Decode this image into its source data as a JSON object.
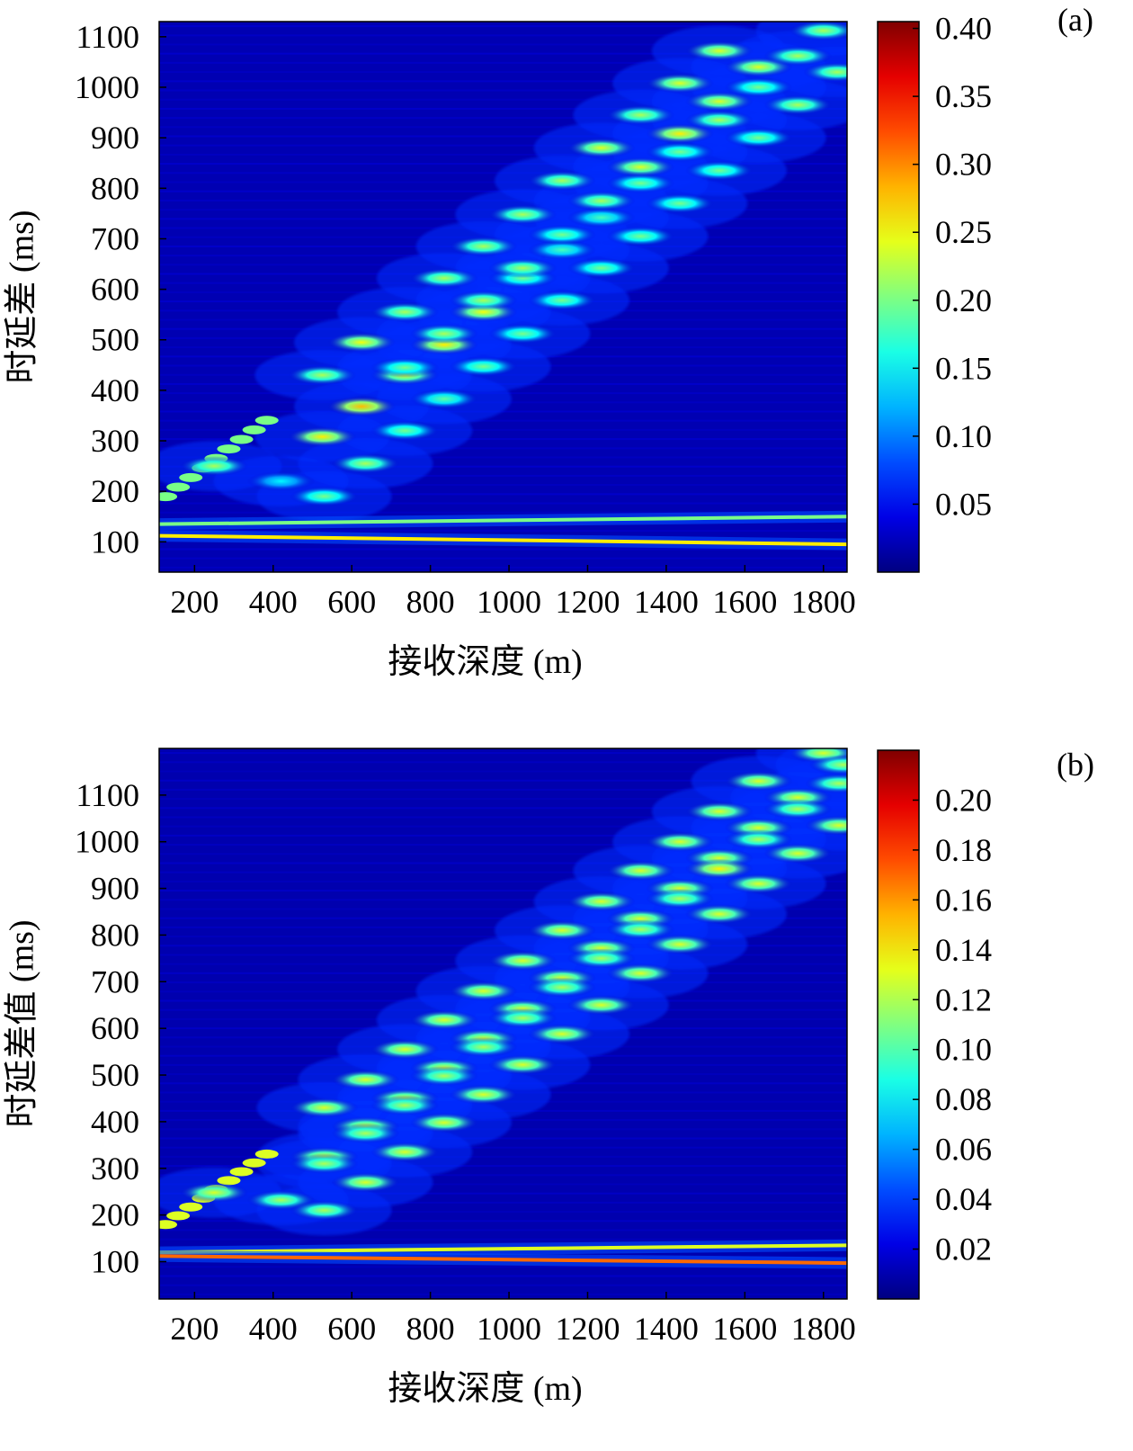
{
  "chart_data": [
    {
      "panel_label": "(a)",
      "type": "heatmap",
      "xlabel": "接收深度 (m)",
      "ylabel": "时延差 (ms)",
      "xlim": [
        110,
        1860
      ],
      "ylim": [
        40,
        1130
      ],
      "xticks": [
        200,
        400,
        600,
        800,
        1000,
        1200,
        1400,
        1600,
        1800
      ],
      "xtick_labels": [
        "200",
        "400",
        "600",
        "800",
        "1000",
        "1200",
        "1400",
        "1600",
        "1800"
      ],
      "yticks": [
        100,
        200,
        300,
        400,
        500,
        600,
        700,
        800,
        900,
        1000,
        1100
      ],
      "ytick_labels": [
        "100",
        "200",
        "300",
        "400",
        "500",
        "600",
        "700",
        "800",
        "900",
        "1000",
        "1100"
      ],
      "colorbar": {
        "min": 0,
        "max": 0.405,
        "ticks": [
          0.05,
          0.1,
          0.15,
          0.2,
          0.25,
          0.3,
          0.35,
          0.4
        ],
        "tick_labels": [
          "0.05",
          "0.10",
          "0.15",
          "0.20",
          "0.25",
          "0.30",
          "0.35",
          "0.40"
        ],
        "colormap": "jet"
      },
      "background_value": 0.02,
      "horizontal_bands": [
        {
          "depths": [
            110,
            1860
          ],
          "delays": [
            135,
            150
          ],
          "value": 0.2
        },
        {
          "depths": [
            110,
            1860
          ],
          "delays": [
            112,
            95
          ],
          "value": 0.26
        }
      ],
      "direct_path": {
        "depths": [
          110,
          400
        ],
        "delays": [
          180,
          350
        ],
        "value": 0.2
      },
      "blobs": [
        {
          "depth": 250,
          "delay": 250,
          "value": 0.22
        },
        {
          "depth": 420,
          "delay": 220,
          "value": 0.15
        },
        {
          "depth": 530,
          "delay": 190,
          "value": 0.2
        },
        {
          "depth": 525,
          "delay": 308,
          "value": 0.26
        },
        {
          "depth": 635,
          "delay": 255,
          "value": 0.22
        },
        {
          "depth": 735,
          "delay": 320,
          "value": 0.2
        },
        {
          "depth": 625,
          "delay": 368,
          "value": 0.28
        },
        {
          "depth": 835,
          "delay": 383,
          "value": 0.19
        },
        {
          "depth": 525,
          "delay": 430,
          "value": 0.22
        },
        {
          "depth": 735,
          "delay": 430,
          "value": 0.24
        },
        {
          "depth": 735,
          "delay": 445,
          "value": 0.2
        },
        {
          "depth": 935,
          "delay": 447,
          "value": 0.2
        },
        {
          "depth": 625,
          "delay": 495,
          "value": 0.25
        },
        {
          "depth": 835,
          "delay": 490,
          "value": 0.26
        },
        {
          "depth": 835,
          "delay": 512,
          "value": 0.22
        },
        {
          "depth": 1035,
          "delay": 512,
          "value": 0.2
        },
        {
          "depth": 735,
          "delay": 555,
          "value": 0.22
        },
        {
          "depth": 935,
          "delay": 555,
          "value": 0.25
        },
        {
          "depth": 935,
          "delay": 578,
          "value": 0.22
        },
        {
          "depth": 1135,
          "delay": 578,
          "value": 0.2
        },
        {
          "depth": 835,
          "delay": 622,
          "value": 0.22
        },
        {
          "depth": 1035,
          "delay": 622,
          "value": 0.2
        },
        {
          "depth": 1035,
          "delay": 642,
          "value": 0.22
        },
        {
          "depth": 1235,
          "delay": 642,
          "value": 0.2
        },
        {
          "depth": 935,
          "delay": 685,
          "value": 0.22
        },
        {
          "depth": 1135,
          "delay": 678,
          "value": 0.18
        },
        {
          "depth": 1135,
          "delay": 708,
          "value": 0.2
        },
        {
          "depth": 1335,
          "delay": 705,
          "value": 0.2
        },
        {
          "depth": 1035,
          "delay": 748,
          "value": 0.22
        },
        {
          "depth": 1235,
          "delay": 742,
          "value": 0.18
        },
        {
          "depth": 1235,
          "delay": 775,
          "value": 0.22
        },
        {
          "depth": 1435,
          "delay": 770,
          "value": 0.2
        },
        {
          "depth": 1135,
          "delay": 815,
          "value": 0.22
        },
        {
          "depth": 1335,
          "delay": 810,
          "value": 0.2
        },
        {
          "depth": 1335,
          "delay": 842,
          "value": 0.24
        },
        {
          "depth": 1535,
          "delay": 835,
          "value": 0.2
        },
        {
          "depth": 1235,
          "delay": 880,
          "value": 0.24
        },
        {
          "depth": 1435,
          "delay": 872,
          "value": 0.2
        },
        {
          "depth": 1435,
          "delay": 908,
          "value": 0.26
        },
        {
          "depth": 1635,
          "delay": 900,
          "value": 0.2
        },
        {
          "depth": 1335,
          "delay": 945,
          "value": 0.22
        },
        {
          "depth": 1535,
          "delay": 935,
          "value": 0.22
        },
        {
          "depth": 1535,
          "delay": 972,
          "value": 0.24
        },
        {
          "depth": 1735,
          "delay": 965,
          "value": 0.22
        },
        {
          "depth": 1435,
          "delay": 1008,
          "value": 0.24
        },
        {
          "depth": 1635,
          "delay": 1000,
          "value": 0.2
        },
        {
          "depth": 1635,
          "delay": 1040,
          "value": 0.24
        },
        {
          "depth": 1835,
          "delay": 1030,
          "value": 0.22
        },
        {
          "depth": 1535,
          "delay": 1072,
          "value": 0.24
        },
        {
          "depth": 1735,
          "delay": 1062,
          "value": 0.22
        },
        {
          "depth": 1800,
          "delay": 1112,
          "value": 0.22
        }
      ]
    },
    {
      "panel_label": "(b)",
      "type": "heatmap",
      "xlabel": "接收深度 (m)",
      "ylabel": "时延差值 (ms)",
      "xlim": [
        110,
        1860
      ],
      "ylim": [
        20,
        1200
      ],
      "xticks": [
        200,
        400,
        600,
        800,
        1000,
        1200,
        1400,
        1600,
        1800
      ],
      "xtick_labels": [
        "200",
        "400",
        "600",
        "800",
        "1000",
        "1200",
        "1400",
        "1600",
        "1800"
      ],
      "yticks": [
        100,
        200,
        300,
        400,
        500,
        600,
        700,
        800,
        900,
        1000,
        1100
      ],
      "ytick_labels": [
        "100",
        "200",
        "300",
        "400",
        "500",
        "600",
        "700",
        "800",
        "900",
        "1000",
        "1100"
      ],
      "colorbar": {
        "min": 0,
        "max": 0.22,
        "ticks": [
          0.02,
          0.04,
          0.06,
          0.08,
          0.1,
          0.12,
          0.14,
          0.16,
          0.18,
          0.2
        ],
        "tick_labels": [
          "0.02",
          "0.04",
          "0.06",
          "0.08",
          "0.10",
          "0.12",
          "0.14",
          "0.16",
          "0.18",
          "0.20"
        ],
        "colormap": "jet"
      },
      "background_value": 0.01,
      "horizontal_bands": [
        {
          "depths": [
            110,
            1860
          ],
          "delays": [
            120,
            135
          ],
          "value": 0.13
        },
        {
          "depths": [
            110,
            1860
          ],
          "delays": [
            112,
            97
          ],
          "value": 0.17
        }
      ],
      "direct_path": {
        "depths": [
          110,
          400
        ],
        "delays": [
          170,
          340
        ],
        "value": 0.13
      },
      "blobs": [
        {
          "depth": 250,
          "delay": 248,
          "value": 0.13
        },
        {
          "depth": 420,
          "delay": 232,
          "value": 0.12
        },
        {
          "depth": 530,
          "delay": 210,
          "value": 0.12
        },
        {
          "depth": 530,
          "delay": 325,
          "value": 0.13
        },
        {
          "depth": 530,
          "delay": 310,
          "value": 0.12
        },
        {
          "depth": 635,
          "delay": 270,
          "value": 0.13
        },
        {
          "depth": 635,
          "delay": 390,
          "value": 0.13
        },
        {
          "depth": 635,
          "delay": 375,
          "value": 0.12
        },
        {
          "depth": 735,
          "delay": 335,
          "value": 0.13
        },
        {
          "depth": 530,
          "delay": 430,
          "value": 0.13
        },
        {
          "depth": 735,
          "delay": 450,
          "value": 0.13
        },
        {
          "depth": 735,
          "delay": 435,
          "value": 0.12
        },
        {
          "depth": 835,
          "delay": 398,
          "value": 0.13
        },
        {
          "depth": 635,
          "delay": 490,
          "value": 0.13
        },
        {
          "depth": 835,
          "delay": 515,
          "value": 0.13
        },
        {
          "depth": 835,
          "delay": 498,
          "value": 0.12
        },
        {
          "depth": 935,
          "delay": 458,
          "value": 0.13
        },
        {
          "depth": 735,
          "delay": 555,
          "value": 0.13
        },
        {
          "depth": 935,
          "delay": 578,
          "value": 0.13
        },
        {
          "depth": 935,
          "delay": 560,
          "value": 0.12
        },
        {
          "depth": 1035,
          "delay": 522,
          "value": 0.13
        },
        {
          "depth": 835,
          "delay": 618,
          "value": 0.13
        },
        {
          "depth": 1035,
          "delay": 642,
          "value": 0.13
        },
        {
          "depth": 1035,
          "delay": 622,
          "value": 0.12
        },
        {
          "depth": 1135,
          "delay": 588,
          "value": 0.13
        },
        {
          "depth": 935,
          "delay": 680,
          "value": 0.13
        },
        {
          "depth": 1135,
          "delay": 708,
          "value": 0.13
        },
        {
          "depth": 1135,
          "delay": 688,
          "value": 0.12
        },
        {
          "depth": 1235,
          "delay": 650,
          "value": 0.13
        },
        {
          "depth": 1035,
          "delay": 745,
          "value": 0.13
        },
        {
          "depth": 1235,
          "delay": 772,
          "value": 0.13
        },
        {
          "depth": 1235,
          "delay": 750,
          "value": 0.12
        },
        {
          "depth": 1335,
          "delay": 718,
          "value": 0.13
        },
        {
          "depth": 1135,
          "delay": 810,
          "value": 0.13
        },
        {
          "depth": 1335,
          "delay": 835,
          "value": 0.13
        },
        {
          "depth": 1335,
          "delay": 812,
          "value": 0.12
        },
        {
          "depth": 1435,
          "delay": 780,
          "value": 0.13
        },
        {
          "depth": 1235,
          "delay": 872,
          "value": 0.13
        },
        {
          "depth": 1435,
          "delay": 900,
          "value": 0.13
        },
        {
          "depth": 1435,
          "delay": 878,
          "value": 0.12
        },
        {
          "depth": 1535,
          "delay": 845,
          "value": 0.13
        },
        {
          "depth": 1335,
          "delay": 938,
          "value": 0.13
        },
        {
          "depth": 1535,
          "delay": 965,
          "value": 0.13
        },
        {
          "depth": 1535,
          "delay": 942,
          "value": 0.14
        },
        {
          "depth": 1635,
          "delay": 910,
          "value": 0.13
        },
        {
          "depth": 1435,
          "delay": 1000,
          "value": 0.13
        },
        {
          "depth": 1635,
          "delay": 1030,
          "value": 0.13
        },
        {
          "depth": 1635,
          "delay": 1005,
          "value": 0.12
        },
        {
          "depth": 1735,
          "delay": 975,
          "value": 0.13
        },
        {
          "depth": 1535,
          "delay": 1065,
          "value": 0.13
        },
        {
          "depth": 1735,
          "delay": 1095,
          "value": 0.13
        },
        {
          "depth": 1735,
          "delay": 1070,
          "value": 0.12
        },
        {
          "depth": 1840,
          "delay": 1035,
          "value": 0.13
        },
        {
          "depth": 1635,
          "delay": 1130,
          "value": 0.13
        },
        {
          "depth": 1840,
          "delay": 1125,
          "value": 0.12
        },
        {
          "depth": 1800,
          "delay": 1190,
          "value": 0.13
        },
        {
          "depth": 1850,
          "delay": 1165,
          "value": 0.12
        }
      ]
    }
  ]
}
